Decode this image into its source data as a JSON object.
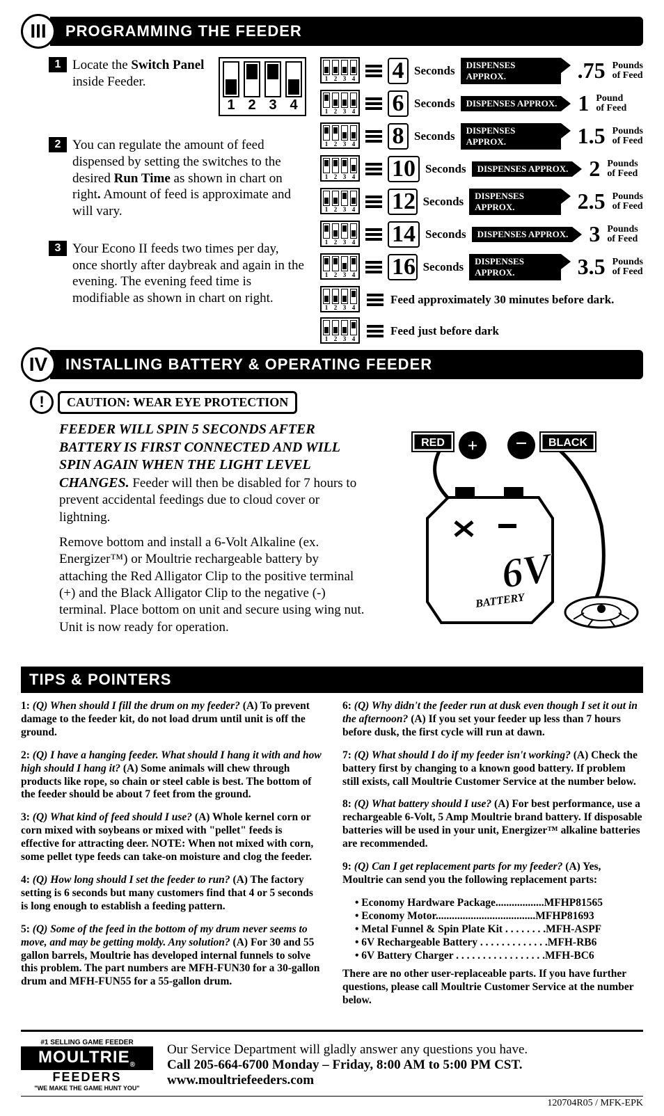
{
  "section3": {
    "roman": "III",
    "title": "PROGRAMMING THE FEEDER",
    "step1": {
      "num": "1",
      "text_a": "Locate the ",
      "text_b": "Switch Panel",
      "text_c": " inside Feeder."
    },
    "step2": {
      "num": "2",
      "text": "You can regulate the amount of feed dispensed by setting the switches to the desired Run Time as shown in chart on right. Amount of feed is approximate and will vary.",
      "bold": "Run Time"
    },
    "step3": {
      "num": "3",
      "text": "Your Econo II feeds two times per day, once shortly after daybreak and again in the evening. The evening feed time is modifiable as shown in chart on right."
    },
    "dip_big_labels": [
      "1",
      "2",
      "3",
      "4"
    ],
    "chart": [
      {
        "sw": [
          "down",
          "down",
          "down",
          "down"
        ],
        "sec": "4",
        "amt": ".75",
        "unit": "Pounds of Feed"
      },
      {
        "sw": [
          "up",
          "down",
          "down",
          "down"
        ],
        "sec": "6",
        "amt": "1",
        "unit": "Pound of Feed"
      },
      {
        "sw": [
          "up",
          "up",
          "down",
          "down"
        ],
        "sec": "8",
        "amt": "1.5",
        "unit": "Pounds of Feed"
      },
      {
        "sw": [
          "up",
          "up",
          "up",
          "down"
        ],
        "sec": "10",
        "amt": "2",
        "unit": "Pounds of Feed"
      },
      {
        "sw": [
          "down",
          "down",
          "up",
          "down"
        ],
        "sec": "12",
        "amt": "2.5",
        "unit": "Pounds of Feed"
      },
      {
        "sw": [
          "up",
          "down",
          "up",
          "down"
        ],
        "sec": "14",
        "amt": "3",
        "unit": "Pounds of Feed"
      },
      {
        "sw": [
          "up",
          "up",
          "down",
          "up"
        ],
        "sec": "16",
        "amt": "3.5",
        "unit": "Pounds of Feed"
      }
    ],
    "seconds_label": "Seconds",
    "dispense_label": "DISPENSES APPROX.",
    "feed_notes": [
      {
        "sw": [
          "down",
          "down",
          "down",
          "up"
        ],
        "text": "Feed approximately 30 minutes before dark."
      },
      {
        "sw": [
          "down",
          "down",
          "down",
          "up"
        ],
        "text": "Feed just before dark"
      }
    ]
  },
  "section4": {
    "roman": "IV",
    "title": "INSTALLING BATTERY & OPERATING FEEDER",
    "caution": "CAUTION: WEAR EYE PROTECTION",
    "warn": "!",
    "para1_em": "FEEDER WILL SPIN 5 SECONDS AFTER BATTERY IS FIRST CONNECTED AND WILL SPIN AGAIN WHEN THE LIGHT LEVEL CHANGES.",
    "para1_rest": " Feeder will then be disabled for 7 hours to prevent accidental feedings due to cloud cover or lightning.",
    "para2": "Remove bottom and install a 6-Volt Alkaline (ex. Energizer™) or Moultrie rechargeable battery by attaching the Red Alligator Clip to the positive terminal (+) and the Black Alligator Clip to the negative (-) terminal. Place bottom on unit and secure using wing nut. Unit is now ready for operation.",
    "red_label": "RED",
    "black_label": "BLACK",
    "plus": "+",
    "minus": "−",
    "battery_label": "6V",
    "battery_sub": "BATTERY"
  },
  "tips": {
    "title": "TIPS & POINTERS",
    "left": [
      {
        "n": "1:",
        "q": "(Q) When should I fill the drum on my feeder?",
        "a": "(A) To prevent damage to the feeder kit, do not load drum until unit is off the ground."
      },
      {
        "n": "2:",
        "q": "(Q) I have a hanging feeder. What should I hang it with and how high should I hang it?",
        "a": "(A) Some animals will chew through products like rope, so chain or steel cable is best. The bottom of the feeder should be about 7 feet from the ground."
      },
      {
        "n": "3:",
        "q": "(Q) What kind of feed should I use?",
        "a": "(A) Whole kernel corn or corn mixed with soybeans or mixed with \"pellet\" feeds is effective for attracting deer. NOTE: When not mixed with corn, some pellet type feeds can take-on moisture and clog the feeder."
      },
      {
        "n": "4:",
        "q": "(Q) How long should I set the feeder to run?",
        "a": "(A) The factory setting is 6 seconds but many customers find that 4 or 5 seconds is long enough to establish a feeding pattern."
      },
      {
        "n": "5:",
        "q": "(Q) Some of the feed in the bottom of my drum never seems to move, and may be getting moldy. Any solution?",
        "a": "(A) For 30 and 55 gallon barrels, Moultrie has developed internal funnels to solve this problem. The part numbers are MFH-FUN30 for a 30-gallon drum and MFH-FUN55 for a 55-gallon drum."
      }
    ],
    "right": [
      {
        "n": "6:",
        "q": "(Q) Why didn't the feeder run at dusk even though I set it out in the afternoon?",
        "a": "(A) If you set your feeder up less than 7 hours before dusk, the first cycle will run at dawn."
      },
      {
        "n": "7:",
        "q": "(Q) What should I do if my feeder isn't working?",
        "a": "(A) Check the battery first by changing to a known good battery. If problem still exists, call Moultrie Customer Service at the number below."
      },
      {
        "n": "8:",
        "q": "(Q) What battery should I use?",
        "a": "(A) For best performance, use a rechargeable 6-Volt, 5 Amp Moultrie brand battery. If disposable batteries will be used in your unit, Energizer™ alkaline batteries are recommended."
      },
      {
        "n": "9:",
        "q": "(Q) Can I get replacement parts for my feeder?",
        "a": "(A) Yes, Moultrie can send you the following replacement parts:"
      }
    ],
    "parts": [
      {
        "name": "Economy Hardware Package",
        "dots": "..................",
        "num": "MFHP81565"
      },
      {
        "name": "Economy Motor",
        "dots": ".....................................",
        "num": "MFHP81693"
      },
      {
        "name": "Metal Funnel & Spin Plate Kit",
        "dots": " . . . . . . . .",
        "num": "MFH-ASPF"
      },
      {
        "name": "6V Rechargeable Battery",
        "dots": " . . . . . . . . . . . . .",
        "num": "MFH-RB6"
      },
      {
        "name": "6V Battery Charger",
        "dots": " . . . . . . . . . . . . . . . . .",
        "num": "MFH-BC6"
      }
    ],
    "parts_footer": "There are no other user-replaceable parts. If you have further questions, please call Moultrie Customer Service at the number below."
  },
  "footer": {
    "arc1": "#1 SELLING GAME FEEDER",
    "brand": "MOULTRIE",
    "brand2": "FEEDERS",
    "arc2": "\"WE MAKE THE GAME HUNT YOU\"",
    "line1": "Our Service Department will gladly answer any questions you have.",
    "line2": "Call 205-664-6700 Monday – Friday, 8:00 AM to 5:00 PM CST.",
    "url": "www.moultriefeeders.com",
    "docnum": "120704R05 / MFK-EPK"
  },
  "reg": "®"
}
